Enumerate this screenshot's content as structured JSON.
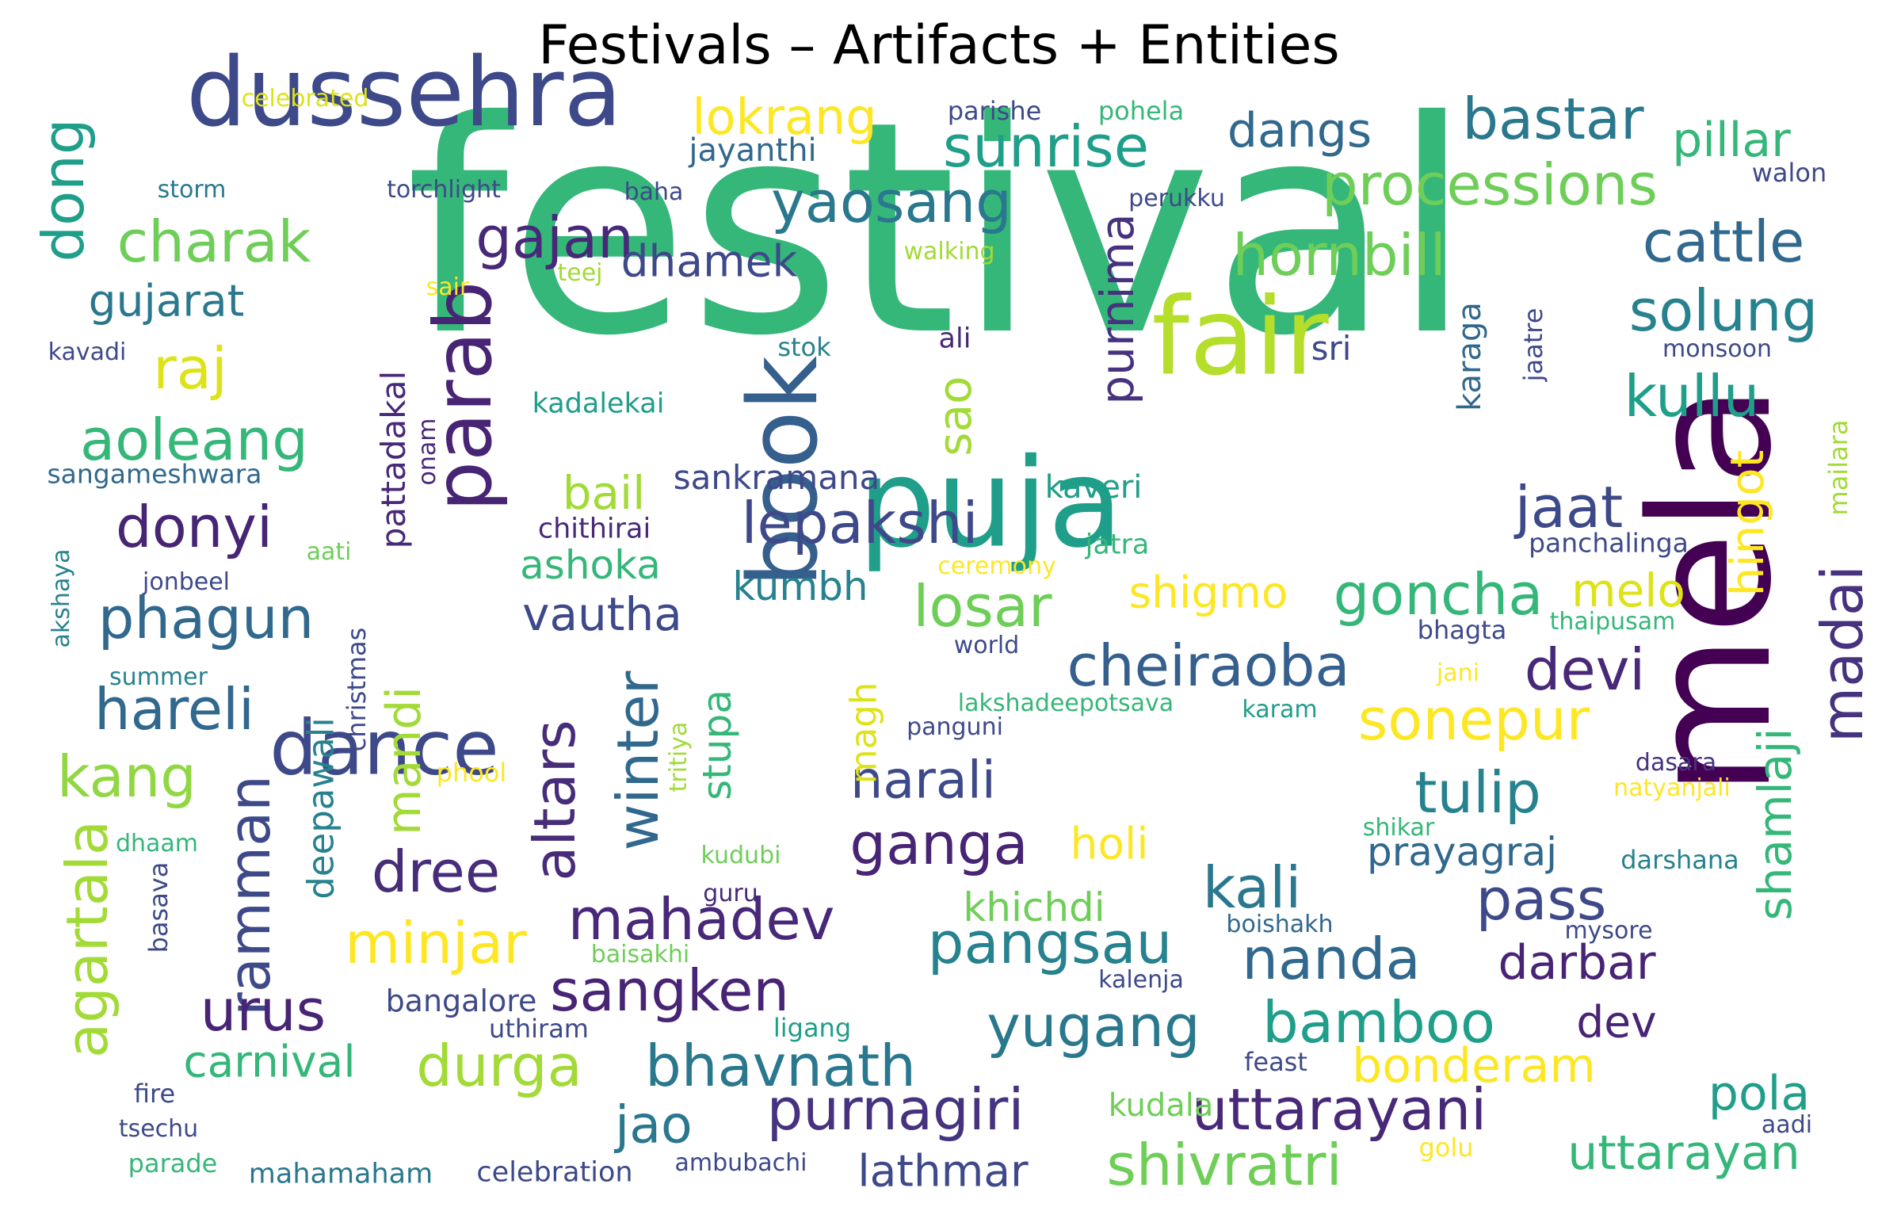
{
  "title": "Festivals – Artifacts + Entities",
  "palette": "viridis",
  "words": [
    {
      "text": "festival",
      "color": "#35b779"
    },
    {
      "text": "mela",
      "color": "#440154"
    },
    {
      "text": "puja",
      "color": "#1f9e89"
    },
    {
      "text": "dussehra",
      "color": "#3e4989"
    },
    {
      "text": "fair",
      "color": "#b5de2b"
    },
    {
      "text": "book",
      "color": "#355f8d"
    },
    {
      "text": "parab",
      "color": "#482475"
    },
    {
      "text": "dance",
      "color": "#3e4989"
    },
    {
      "text": "processions",
      "color": "#6ece58"
    },
    {
      "text": "sunrise",
      "color": "#1f9e89"
    },
    {
      "text": "bastar",
      "color": "#2a788e"
    },
    {
      "text": "hornbill",
      "color": "#6ece58"
    },
    {
      "text": "yaosang",
      "color": "#2a788e"
    },
    {
      "text": "cattle",
      "color": "#31688e"
    },
    {
      "text": "solung",
      "color": "#26828e"
    },
    {
      "text": "charak",
      "color": "#6ece58"
    },
    {
      "text": "gajan",
      "color": "#482878"
    },
    {
      "text": "kullu",
      "color": "#1f9e89"
    },
    {
      "text": "raj",
      "color": "#dde318"
    },
    {
      "text": "aoleang",
      "color": "#35b779"
    },
    {
      "text": "lepakshi",
      "color": "#3e4989"
    },
    {
      "text": "jaat",
      "color": "#3e4989"
    },
    {
      "text": "donyi",
      "color": "#482475"
    },
    {
      "text": "phagun",
      "color": "#31688e"
    },
    {
      "text": "goncha",
      "color": "#35b779"
    },
    {
      "text": "losar",
      "color": "#6ece58"
    },
    {
      "text": "cheiraoba",
      "color": "#355f8d"
    },
    {
      "text": "devi",
      "color": "#482878"
    },
    {
      "text": "sonepur",
      "color": "#fde725"
    },
    {
      "text": "madai",
      "color": "#46327e"
    },
    {
      "text": "tulip",
      "color": "#26828e"
    },
    {
      "text": "hareli",
      "color": "#31688e"
    },
    {
      "text": "kang",
      "color": "#90d743"
    },
    {
      "text": "ganga",
      "color": "#482475"
    },
    {
      "text": "narali",
      "color": "#3e4989"
    },
    {
      "text": "altars",
      "color": "#472c7a"
    },
    {
      "text": "winter",
      "color": "#31688e"
    },
    {
      "text": "dree",
      "color": "#472c7a"
    },
    {
      "text": "mandi",
      "color": "#a2da37"
    },
    {
      "text": "minjar",
      "color": "#fde725"
    },
    {
      "text": "ramman",
      "color": "#3e4989"
    },
    {
      "text": "kali",
      "color": "#2a788e"
    },
    {
      "text": "pass",
      "color": "#3e4989"
    },
    {
      "text": "mahadev",
      "color": "#482878"
    },
    {
      "text": "pangsau",
      "color": "#26828e"
    },
    {
      "text": "nanda",
      "color": "#31688e"
    },
    {
      "text": "darbar",
      "color": "#482475"
    },
    {
      "text": "urus",
      "color": "#482475"
    },
    {
      "text": "sangken",
      "color": "#482475"
    },
    {
      "text": "yugang",
      "color": "#2a788e"
    },
    {
      "text": "bamboo",
      "color": "#1f9e89"
    },
    {
      "text": "agartala",
      "color": "#a2da37"
    },
    {
      "text": "durga",
      "color": "#a2da37"
    },
    {
      "text": "carnival",
      "color": "#35b779"
    },
    {
      "text": "bhavnath",
      "color": "#2a788e"
    },
    {
      "text": "bonderam",
      "color": "#fde725"
    },
    {
      "text": "dev",
      "color": "#482475"
    },
    {
      "text": "purnagiri",
      "color": "#46327e"
    },
    {
      "text": "uttarayani",
      "color": "#482878"
    },
    {
      "text": "jao",
      "color": "#2a788e"
    },
    {
      "text": "pola",
      "color": "#1f9e89"
    },
    {
      "text": "shivratri",
      "color": "#6ece58"
    },
    {
      "text": "uttarayan",
      "color": "#35b779"
    },
    {
      "text": "lathmar",
      "color": "#3e4989"
    },
    {
      "text": "dong",
      "color": "#1f9e89"
    },
    {
      "text": "lokrang",
      "color": "#fde725"
    },
    {
      "text": "dangs",
      "color": "#31688e"
    },
    {
      "text": "pillar",
      "color": "#35b779"
    },
    {
      "text": "purnima",
      "color": "#46327e"
    },
    {
      "text": "gujarat",
      "color": "#2a788e"
    },
    {
      "text": "dhamek",
      "color": "#3e4989"
    },
    {
      "text": "sao",
      "color": "#a2da37"
    },
    {
      "text": "bail",
      "color": "#a2da37"
    },
    {
      "text": "sankramana",
      "color": "#3e4989"
    },
    {
      "text": "ashoka",
      "color": "#35b779"
    },
    {
      "text": "vautha",
      "color": "#3e4989"
    },
    {
      "text": "kumbh",
      "color": "#26828e"
    },
    {
      "text": "shigmo",
      "color": "#fde725"
    },
    {
      "text": "melo",
      "color": "#dde318"
    },
    {
      "text": "hingot",
      "color": "#fde725"
    },
    {
      "text": "shamlaji",
      "color": "#35b779"
    },
    {
      "text": "stupa",
      "color": "#35b779"
    },
    {
      "text": "magh",
      "color": "#dde318"
    },
    {
      "text": "deepawali",
      "color": "#26828e"
    },
    {
      "text": "pattadakal",
      "color": "#482878"
    },
    {
      "text": "holi",
      "color": "#fde725"
    },
    {
      "text": "khichdi",
      "color": "#6ece58"
    },
    {
      "text": "prayagraj",
      "color": "#31688e"
    },
    {
      "text": "karaga",
      "color": "#31688e"
    },
    {
      "text": "jaatre",
      "color": "#3e4989"
    },
    {
      "text": "sri",
      "color": "#3e4989"
    },
    {
      "text": "kaveri",
      "color": "#1f9e89"
    },
    {
      "text": "chithirai",
      "color": "#482878"
    },
    {
      "text": "jatra",
      "color": "#35b779"
    },
    {
      "text": "panchalinga",
      "color": "#3e4989"
    },
    {
      "text": "mailara",
      "color": "#a2da37"
    },
    {
      "text": "thaipusam",
      "color": "#35b779"
    },
    {
      "text": "bhagta",
      "color": "#3e4989"
    },
    {
      "text": "jani",
      "color": "#fde725"
    },
    {
      "text": "dasara",
      "color": "#46327e"
    },
    {
      "text": "natyanjali",
      "color": "#fde725"
    },
    {
      "text": "shikar",
      "color": "#35b779"
    },
    {
      "text": "darshana",
      "color": "#26828e"
    },
    {
      "text": "mysore",
      "color": "#3e4989"
    },
    {
      "text": "boishakh",
      "color": "#31688e"
    },
    {
      "text": "kalenja",
      "color": "#3e4989"
    },
    {
      "text": "feast",
      "color": "#3e4989"
    },
    {
      "text": "aadi",
      "color": "#3e4989"
    },
    {
      "text": "golu",
      "color": "#fde725"
    },
    {
      "text": "kudala",
      "color": "#6ece58"
    },
    {
      "text": "ambubachi",
      "color": "#3e4989"
    },
    {
      "text": "celebration",
      "color": "#3e4989"
    },
    {
      "text": "mahamaham",
      "color": "#2a788e"
    },
    {
      "text": "parade",
      "color": "#35b779"
    },
    {
      "text": "tsechu",
      "color": "#3e4989"
    },
    {
      "text": "fire",
      "color": "#3e4989"
    },
    {
      "text": "uthiram",
      "color": "#3e4989"
    },
    {
      "text": "bangalore",
      "color": "#3e4989"
    },
    {
      "text": "ligang",
      "color": "#1f9e89"
    },
    {
      "text": "baisakhi",
      "color": "#6ece58"
    },
    {
      "text": "guru",
      "color": "#482878"
    },
    {
      "text": "kudubi",
      "color": "#6ece58"
    },
    {
      "text": "tritiya",
      "color": "#a2da37"
    },
    {
      "text": "phool",
      "color": "#fde725"
    },
    {
      "text": "christmas",
      "color": "#3e4989"
    },
    {
      "text": "basava",
      "color": "#3e4989"
    },
    {
      "text": "dhaam",
      "color": "#35b779"
    },
    {
      "text": "summer",
      "color": "#26828e"
    },
    {
      "text": "akshaya",
      "color": "#26828e"
    },
    {
      "text": "jonbeel",
      "color": "#3e4989"
    },
    {
      "text": "aati",
      "color": "#6ece58"
    },
    {
      "text": "sangameshwara",
      "color": "#31688e"
    },
    {
      "text": "onam",
      "color": "#482878"
    },
    {
      "text": "kadalekai",
      "color": "#1f9e89"
    },
    {
      "text": "kavadi",
      "color": "#3e4989"
    },
    {
      "text": "sair",
      "color": "#fde725"
    },
    {
      "text": "teej",
      "color": "#a2da37"
    },
    {
      "text": "stok",
      "color": "#26828e"
    },
    {
      "text": "ali",
      "color": "#482878"
    },
    {
      "text": "walking",
      "color": "#a2da37"
    },
    {
      "text": "storm",
      "color": "#2a788e"
    },
    {
      "text": "torchlight",
      "color": "#3e4989"
    },
    {
      "text": "baha",
      "color": "#3e4989"
    },
    {
      "text": "celebrated",
      "color": "#dde318"
    },
    {
      "text": "jayanthi",
      "color": "#31688e"
    },
    {
      "text": "parishe",
      "color": "#3e4989"
    },
    {
      "text": "pohela",
      "color": "#35b779"
    },
    {
      "text": "perukku",
      "color": "#3e4989"
    },
    {
      "text": "walon",
      "color": "#3e4989"
    },
    {
      "text": "monsoon",
      "color": "#3e4989"
    },
    {
      "text": "ceremony",
      "color": "#fde725"
    },
    {
      "text": "world",
      "color": "#3e4989"
    },
    {
      "text": "lakshadeepotsava",
      "color": "#35b779"
    },
    {
      "text": "karam",
      "color": "#1f9e89"
    },
    {
      "text": "panguni",
      "color": "#3e4989"
    }
  ]
}
